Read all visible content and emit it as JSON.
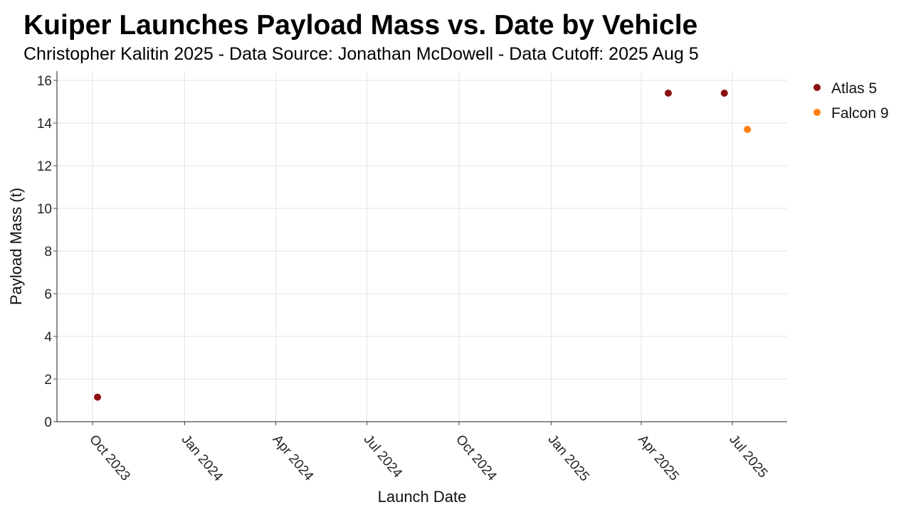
{
  "chart_data": {
    "type": "scatter",
    "title": "Kuiper Launches Payload Mass vs. Date by Vehicle",
    "subtitle": "Christopher Kalitin 2025 - Data Source: Jonathan McDowell - Data Cutoff: 2025 Aug 5",
    "xlabel": "Launch Date",
    "ylabel": "Payload Mass (t)",
    "xlim": [
      "2023-09-01",
      "2025-08-05"
    ],
    "ylim": [
      0,
      16.4
    ],
    "x_ticks": [
      {
        "date": "2023-10-01",
        "label": "Oct 2023"
      },
      {
        "date": "2024-01-01",
        "label": "Jan 2024"
      },
      {
        "date": "2024-04-01",
        "label": "Apr 2024"
      },
      {
        "date": "2024-07-01",
        "label": "Jul 2024"
      },
      {
        "date": "2024-10-01",
        "label": "Oct 2024"
      },
      {
        "date": "2025-01-01",
        "label": "Jan 2025"
      },
      {
        "date": "2025-04-01",
        "label": "Apr 2025"
      },
      {
        "date": "2025-07-01",
        "label": "Jul 2025"
      }
    ],
    "y_ticks": [
      0,
      2,
      4,
      6,
      8,
      10,
      12,
      14,
      16
    ],
    "grid": true,
    "legend_position": "right",
    "series": [
      {
        "name": "Atlas 5",
        "color": "#8b0e11",
        "points": [
          {
            "x": "2023-10-06",
            "y": 1.15
          },
          {
            "x": "2025-04-28",
            "y": 15.4
          },
          {
            "x": "2025-06-23",
            "y": 15.4
          }
        ]
      },
      {
        "name": "Falcon 9",
        "color": "#ff7f0e",
        "points": [
          {
            "x": "2025-07-16",
            "y": 13.7
          }
        ]
      }
    ]
  }
}
